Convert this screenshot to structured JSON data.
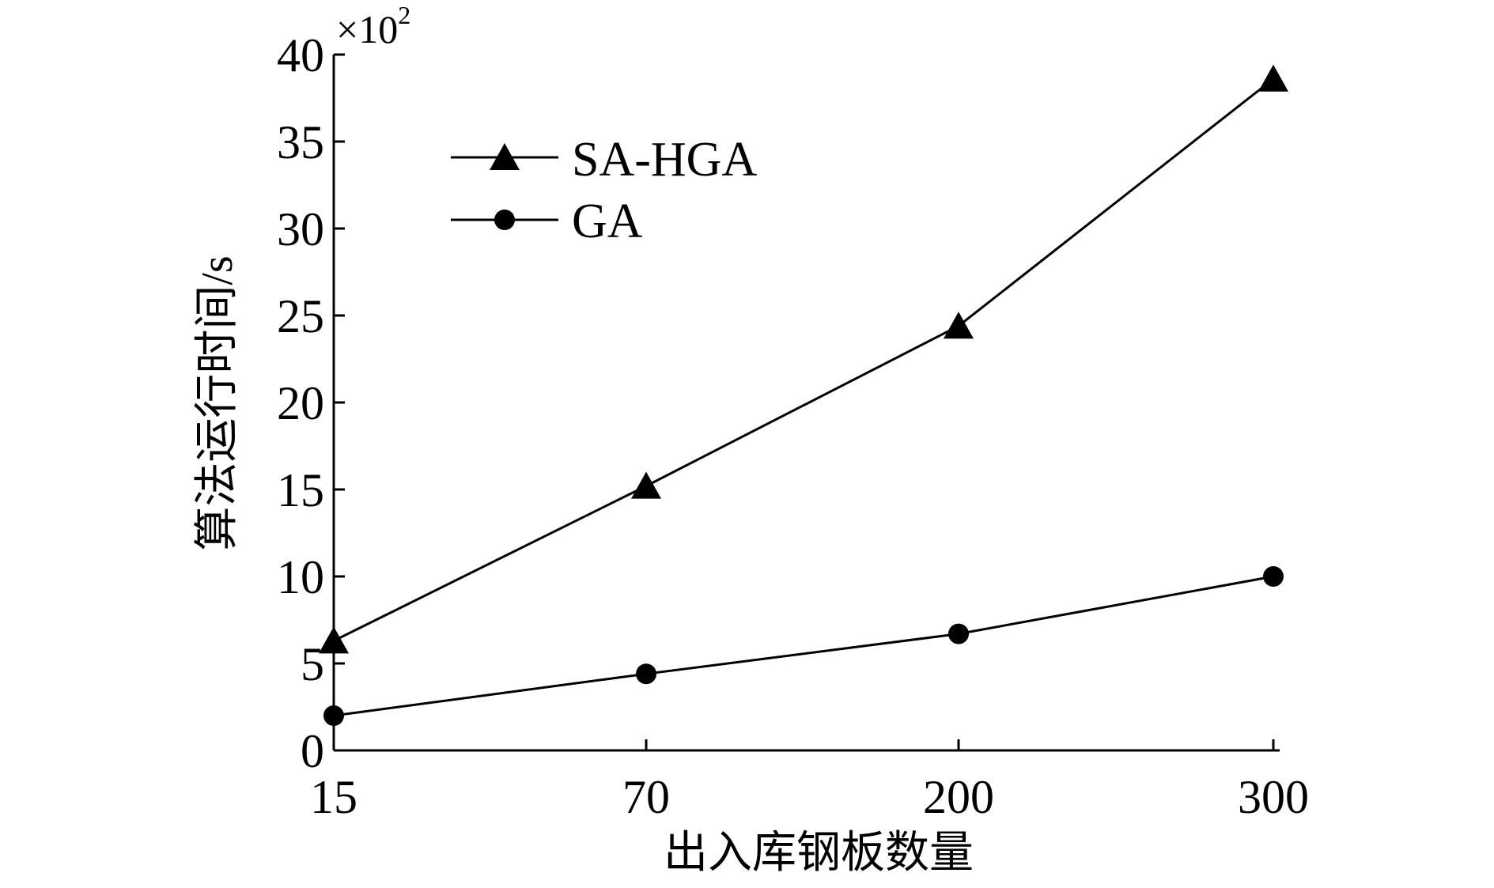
{
  "chart_data": {
    "type": "line",
    "categories": [
      "15",
      "70",
      "200",
      "300"
    ],
    "series": [
      {
        "name": "SA-HGA",
        "marker": "triangle",
        "values": [
          6.3,
          15.2,
          24.4,
          38.6
        ]
      },
      {
        "name": "GA",
        "marker": "circle",
        "values": [
          2.0,
          4.4,
          6.7,
          10.0
        ]
      }
    ],
    "xlabel": "出入库钢板数量",
    "ylabel": "算法运行时间/s",
    "ylim": [
      0,
      40
    ],
    "yticks": [
      "0",
      "5",
      "10",
      "15",
      "20",
      "25",
      "30",
      "35",
      "40"
    ],
    "y_multiplier": {
      "prefix": "×10",
      "exponent": "2"
    },
    "grid": false,
    "legend_position": "top-left",
    "line_color": "#000000"
  }
}
